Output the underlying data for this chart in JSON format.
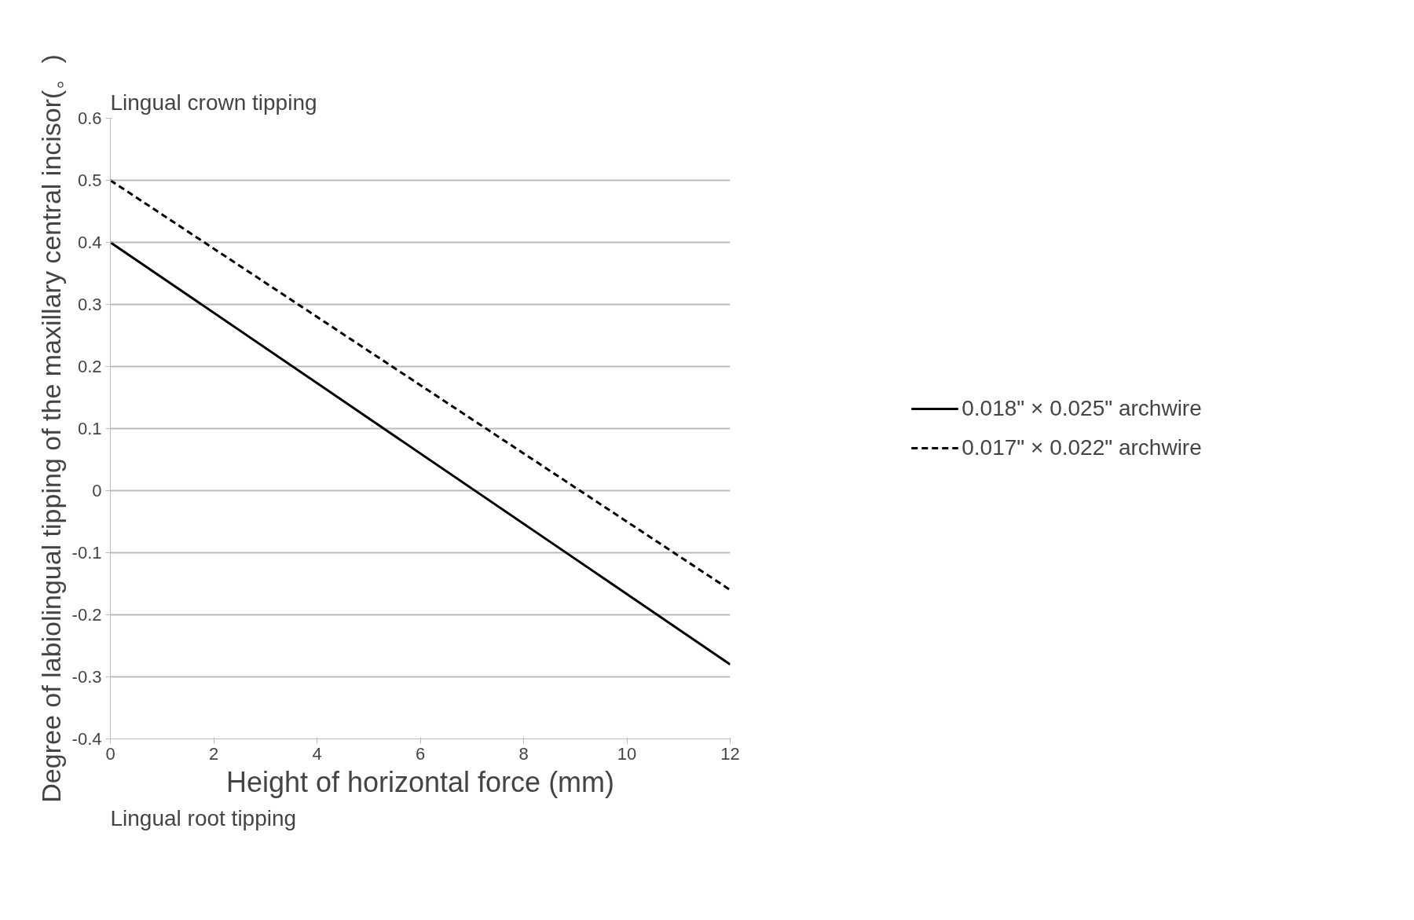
{
  "chart_data": {
    "type": "line",
    "xlabel": "Height of horizontal force (mm)",
    "ylabel": "Degree of labiolingual tipping of the maxillary central incisor(。)",
    "annotations": [
      "Lingual crown tipping",
      "Lingual root tipping"
    ],
    "x": [
      0,
      12
    ],
    "series": [
      {
        "name": "0.018\" × 0.025\" archwire",
        "color": "#000000",
        "values": [
          0.4,
          -0.28
        ],
        "line_style": "solid"
      },
      {
        "name": "0.017\" × 0.022\" archwire",
        "color": "#000000",
        "values": [
          0.5,
          -0.16
        ],
        "line_style": "dashed"
      }
    ],
    "xlim": [
      0,
      12
    ],
    "xticks": [
      0,
      2,
      4,
      6,
      8,
      10,
      12
    ],
    "ylim": [
      -0.4,
      0.6
    ],
    "yticks": [
      -0.4,
      -0.3,
      -0.2,
      -0.1,
      0,
      0.1,
      0.2,
      0.3,
      0.4,
      0.5,
      0.6
    ],
    "grid": "y",
    "legend": "right",
    "marker": "none"
  }
}
